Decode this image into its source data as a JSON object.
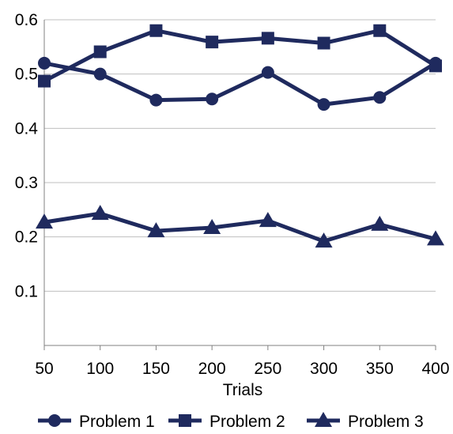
{
  "chart_data": {
    "type": "line",
    "title": "",
    "xlabel": "Trials",
    "ylabel": "",
    "x": [
      50,
      100,
      150,
      200,
      250,
      300,
      350,
      400
    ],
    "ylim": [
      0,
      0.6
    ],
    "yticks": [
      0.1,
      0.2,
      0.3,
      0.4,
      0.5,
      0.6
    ],
    "grid": true,
    "legend_position": "bottom",
    "series": [
      {
        "name": "Problem 1",
        "marker": "circle",
        "values": [
          0.52,
          0.5,
          0.452,
          0.454,
          0.503,
          0.444,
          0.457,
          0.52
        ]
      },
      {
        "name": "Problem 2",
        "marker": "square",
        "values": [
          0.487,
          0.541,
          0.58,
          0.559,
          0.566,
          0.557,
          0.58,
          0.515
        ]
      },
      {
        "name": "Problem 3",
        "marker": "triangle",
        "values": [
          0.227,
          0.243,
          0.211,
          0.217,
          0.23,
          0.192,
          0.223,
          0.196
        ]
      }
    ],
    "colors": {
      "series": "#1f2a5e",
      "grid": "#bfbfbf",
      "axis": "#808080"
    }
  }
}
